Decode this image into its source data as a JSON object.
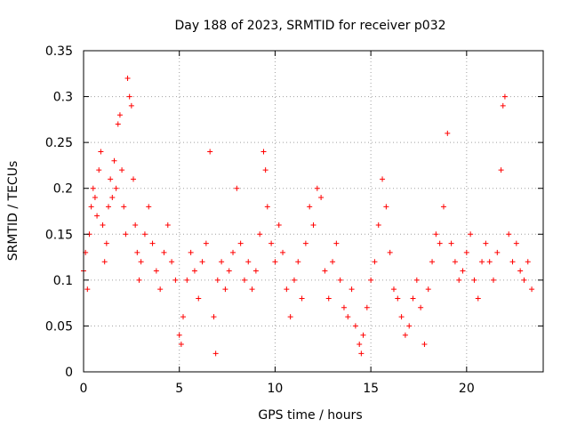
{
  "chart_data": {
    "type": "scatter",
    "title": "Day 188 of 2023, SRMTID for receiver p032",
    "xlabel": "GPS time / hours",
    "ylabel": "SRMTID / TECUs",
    "xlim": [
      0,
      24
    ],
    "ylim": [
      0,
      0.35
    ],
    "xticks": [
      0,
      5,
      10,
      15,
      20
    ],
    "xtick_labels": [
      "0",
      "5",
      "10",
      "15",
      "20"
    ],
    "yticks": [
      0,
      0.05,
      0.1,
      0.15,
      0.2,
      0.25,
      0.3,
      0.35
    ],
    "ytick_labels": [
      "0",
      "0.05",
      "0.1",
      "0.15",
      "0.2",
      "0.25",
      "0.3",
      "0.35"
    ],
    "grid": true,
    "marker": "+",
    "color": "#ff0000",
    "series": [
      {
        "name": "SRMTID",
        "points": [
          [
            0.0,
            0.11
          ],
          [
            0.1,
            0.13
          ],
          [
            0.2,
            0.09
          ],
          [
            0.3,
            0.15
          ],
          [
            0.4,
            0.18
          ],
          [
            0.5,
            0.2
          ],
          [
            0.6,
            0.19
          ],
          [
            0.7,
            0.17
          ],
          [
            0.8,
            0.22
          ],
          [
            0.9,
            0.24
          ],
          [
            1.0,
            0.16
          ],
          [
            1.1,
            0.12
          ],
          [
            1.2,
            0.14
          ],
          [
            1.3,
            0.18
          ],
          [
            1.4,
            0.21
          ],
          [
            1.5,
            0.19
          ],
          [
            1.6,
            0.23
          ],
          [
            1.7,
            0.2
          ],
          [
            1.8,
            0.27
          ],
          [
            1.9,
            0.28
          ],
          [
            2.0,
            0.22
          ],
          [
            2.1,
            0.18
          ],
          [
            2.2,
            0.15
          ],
          [
            2.3,
            0.32
          ],
          [
            2.4,
            0.3
          ],
          [
            2.5,
            0.29
          ],
          [
            2.6,
            0.21
          ],
          [
            2.7,
            0.16
          ],
          [
            2.8,
            0.13
          ],
          [
            2.9,
            0.1
          ],
          [
            3.0,
            0.12
          ],
          [
            3.2,
            0.15
          ],
          [
            3.4,
            0.18
          ],
          [
            3.6,
            0.14
          ],
          [
            3.8,
            0.11
          ],
          [
            4.0,
            0.09
          ],
          [
            4.2,
            0.13
          ],
          [
            4.4,
            0.16
          ],
          [
            4.6,
            0.12
          ],
          [
            4.8,
            0.1
          ],
          [
            5.0,
            0.04
          ],
          [
            5.1,
            0.03
          ],
          [
            5.2,
            0.06
          ],
          [
            5.4,
            0.1
          ],
          [
            5.6,
            0.13
          ],
          [
            5.8,
            0.11
          ],
          [
            6.0,
            0.08
          ],
          [
            6.2,
            0.12
          ],
          [
            6.4,
            0.14
          ],
          [
            6.6,
            0.24
          ],
          [
            6.8,
            0.06
          ],
          [
            6.9,
            0.02
          ],
          [
            7.0,
            0.1
          ],
          [
            7.2,
            0.12
          ],
          [
            7.4,
            0.09
          ],
          [
            7.6,
            0.11
          ],
          [
            7.8,
            0.13
          ],
          [
            8.0,
            0.2
          ],
          [
            8.2,
            0.14
          ],
          [
            8.4,
            0.1
          ],
          [
            8.6,
            0.12
          ],
          [
            8.8,
            0.09
          ],
          [
            9.0,
            0.11
          ],
          [
            9.2,
            0.15
          ],
          [
            9.4,
            0.24
          ],
          [
            9.5,
            0.22
          ],
          [
            9.6,
            0.18
          ],
          [
            9.8,
            0.14
          ],
          [
            10.0,
            0.12
          ],
          [
            10.2,
            0.16
          ],
          [
            10.4,
            0.13
          ],
          [
            10.6,
            0.09
          ],
          [
            10.8,
            0.06
          ],
          [
            11.0,
            0.1
          ],
          [
            11.2,
            0.12
          ],
          [
            11.4,
            0.08
          ],
          [
            11.6,
            0.14
          ],
          [
            11.8,
            0.18
          ],
          [
            12.0,
            0.16
          ],
          [
            12.2,
            0.2
          ],
          [
            12.4,
            0.19
          ],
          [
            12.6,
            0.11
          ],
          [
            12.8,
            0.08
          ],
          [
            13.0,
            0.12
          ],
          [
            13.2,
            0.14
          ],
          [
            13.4,
            0.1
          ],
          [
            13.6,
            0.07
          ],
          [
            13.8,
            0.06
          ],
          [
            14.0,
            0.09
          ],
          [
            14.2,
            0.05
          ],
          [
            14.4,
            0.03
          ],
          [
            14.5,
            0.02
          ],
          [
            14.6,
            0.04
          ],
          [
            14.8,
            0.07
          ],
          [
            15.0,
            0.1
          ],
          [
            15.2,
            0.12
          ],
          [
            15.4,
            0.16
          ],
          [
            15.6,
            0.21
          ],
          [
            15.8,
            0.18
          ],
          [
            16.0,
            0.13
          ],
          [
            16.2,
            0.09
          ],
          [
            16.4,
            0.08
          ],
          [
            16.6,
            0.06
          ],
          [
            16.8,
            0.04
          ],
          [
            17.0,
            0.05
          ],
          [
            17.2,
            0.08
          ],
          [
            17.4,
            0.1
          ],
          [
            17.6,
            0.07
          ],
          [
            17.8,
            0.03
          ],
          [
            18.0,
            0.09
          ],
          [
            18.2,
            0.12
          ],
          [
            18.4,
            0.15
          ],
          [
            18.6,
            0.14
          ],
          [
            18.8,
            0.18
          ],
          [
            19.0,
            0.26
          ],
          [
            19.2,
            0.14
          ],
          [
            19.4,
            0.12
          ],
          [
            19.6,
            0.1
          ],
          [
            19.8,
            0.11
          ],
          [
            20.0,
            0.13
          ],
          [
            20.2,
            0.15
          ],
          [
            20.4,
            0.1
          ],
          [
            20.6,
            0.08
          ],
          [
            20.8,
            0.12
          ],
          [
            21.0,
            0.14
          ],
          [
            21.2,
            0.12
          ],
          [
            21.4,
            0.1
          ],
          [
            21.6,
            0.13
          ],
          [
            21.8,
            0.22
          ],
          [
            21.9,
            0.29
          ],
          [
            22.0,
            0.3
          ],
          [
            22.2,
            0.15
          ],
          [
            22.4,
            0.12
          ],
          [
            22.6,
            0.14
          ],
          [
            22.8,
            0.11
          ],
          [
            23.0,
            0.1
          ],
          [
            23.2,
            0.12
          ],
          [
            23.4,
            0.09
          ]
        ]
      }
    ]
  }
}
